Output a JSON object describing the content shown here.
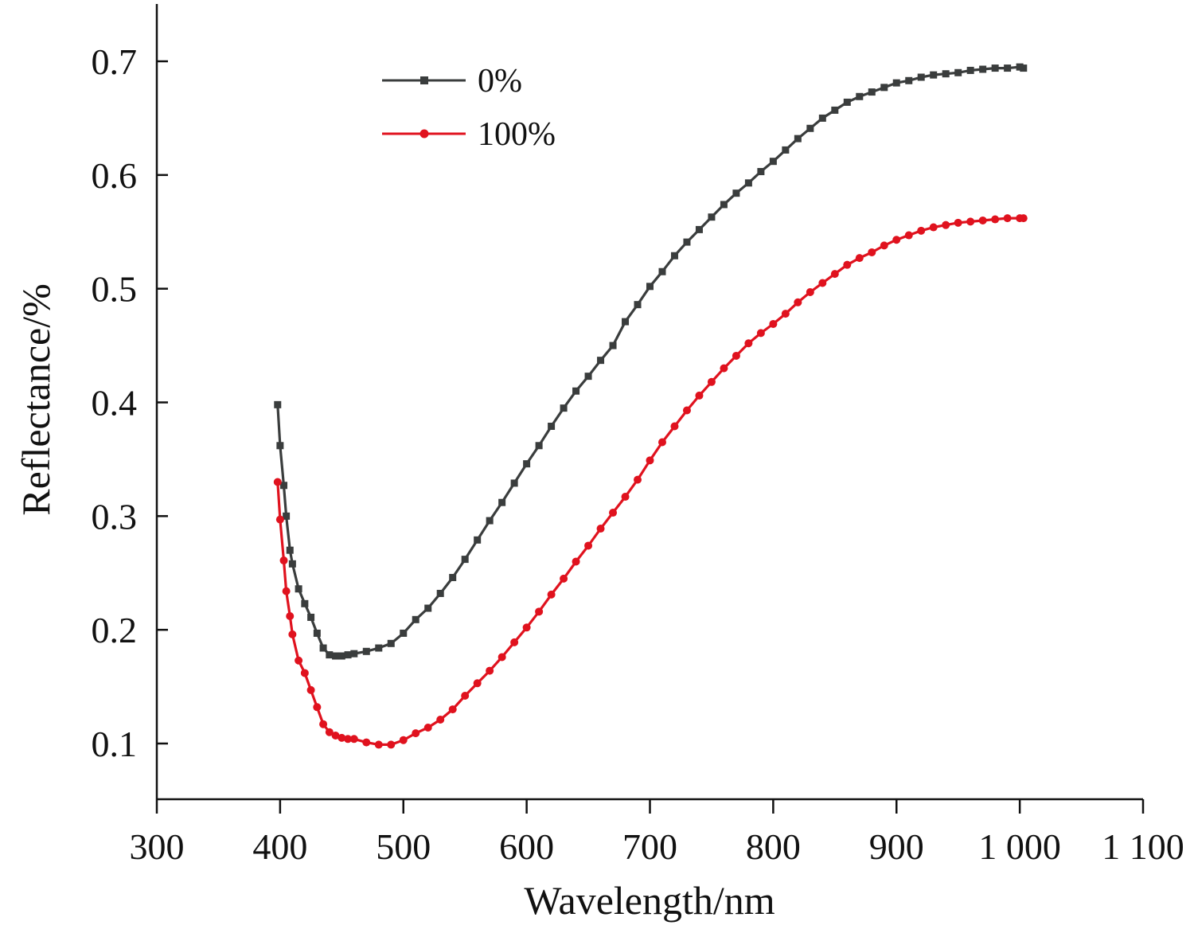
{
  "chart_data": {
    "type": "line",
    "title": "",
    "xlabel": "Wavelength/nm",
    "ylabel": "Reflectance/%",
    "xlim": [
      300,
      1100
    ],
    "ylim": [
      0.05,
      0.75
    ],
    "x_ticks": [
      300,
      400,
      500,
      600,
      700,
      800,
      900,
      1000,
      1100
    ],
    "x_tick_labels": [
      "300",
      "400",
      "500",
      "600",
      "700",
      "800",
      "900",
      "1 000",
      "1 100"
    ],
    "y_ticks": [
      0.1,
      0.2,
      0.3,
      0.4,
      0.5,
      0.6,
      0.7
    ],
    "y_tick_labels": [
      "0.1",
      "0.2",
      "0.3",
      "0.4",
      "0.5",
      "0.6",
      "0.7"
    ],
    "grid": false,
    "legend_position": "top-left",
    "series": [
      {
        "name": "0%",
        "color": "#3a3d3d",
        "marker": "square",
        "x": [
          398,
          400,
          403,
          405,
          408,
          410,
          415,
          420,
          425,
          430,
          435,
          440,
          445,
          450,
          455,
          460,
          470,
          480,
          490,
          500,
          510,
          520,
          530,
          540,
          550,
          560,
          570,
          580,
          590,
          600,
          610,
          620,
          630,
          640,
          650,
          660,
          670,
          680,
          690,
          700,
          710,
          720,
          730,
          740,
          750,
          760,
          770,
          780,
          790,
          800,
          810,
          820,
          830,
          840,
          850,
          860,
          870,
          880,
          890,
          900,
          910,
          920,
          930,
          940,
          950,
          960,
          970,
          980,
          990,
          1000,
          1003
        ],
        "y": [
          0.398,
          0.362,
          0.327,
          0.3,
          0.27,
          0.258,
          0.236,
          0.223,
          0.211,
          0.197,
          0.184,
          0.178,
          0.177,
          0.177,
          0.178,
          0.179,
          0.181,
          0.184,
          0.188,
          0.197,
          0.209,
          0.219,
          0.232,
          0.246,
          0.262,
          0.279,
          0.296,
          0.312,
          0.329,
          0.346,
          0.362,
          0.379,
          0.395,
          0.41,
          0.423,
          0.437,
          0.45,
          0.471,
          0.486,
          0.502,
          0.515,
          0.529,
          0.541,
          0.552,
          0.563,
          0.574,
          0.584,
          0.593,
          0.603,
          0.612,
          0.622,
          0.632,
          0.641,
          0.65,
          0.657,
          0.664,
          0.669,
          0.673,
          0.677,
          0.681,
          0.683,
          0.686,
          0.688,
          0.689,
          0.69,
          0.692,
          0.693,
          0.694,
          0.694,
          0.695,
          0.694
        ]
      },
      {
        "name": "100%",
        "color": "#e0121e",
        "marker": "circle",
        "x": [
          398,
          400,
          403,
          405,
          408,
          410,
          415,
          420,
          425,
          430,
          435,
          440,
          445,
          450,
          455,
          460,
          470,
          480,
          490,
          500,
          510,
          520,
          530,
          540,
          550,
          560,
          570,
          580,
          590,
          600,
          610,
          620,
          630,
          640,
          650,
          660,
          670,
          680,
          690,
          700,
          710,
          720,
          730,
          740,
          750,
          760,
          770,
          780,
          790,
          800,
          810,
          820,
          830,
          840,
          850,
          860,
          870,
          880,
          890,
          900,
          910,
          920,
          930,
          940,
          950,
          960,
          970,
          980,
          990,
          1000,
          1003
        ],
        "y": [
          0.33,
          0.297,
          0.261,
          0.234,
          0.212,
          0.196,
          0.173,
          0.162,
          0.147,
          0.132,
          0.117,
          0.11,
          0.107,
          0.105,
          0.104,
          0.104,
          0.101,
          0.099,
          0.099,
          0.103,
          0.109,
          0.114,
          0.121,
          0.13,
          0.142,
          0.153,
          0.164,
          0.176,
          0.189,
          0.202,
          0.216,
          0.231,
          0.245,
          0.26,
          0.274,
          0.289,
          0.303,
          0.317,
          0.332,
          0.349,
          0.365,
          0.379,
          0.393,
          0.406,
          0.418,
          0.43,
          0.441,
          0.452,
          0.461,
          0.469,
          0.478,
          0.488,
          0.497,
          0.505,
          0.513,
          0.521,
          0.527,
          0.532,
          0.538,
          0.543,
          0.547,
          0.551,
          0.554,
          0.556,
          0.558,
          0.559,
          0.56,
          0.561,
          0.562,
          0.562,
          0.562
        ]
      }
    ]
  }
}
